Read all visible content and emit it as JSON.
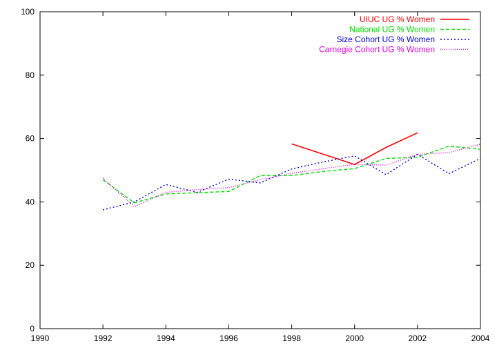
{
  "chart_data": {
    "type": "line",
    "title": "",
    "xlabel": "",
    "ylabel": "",
    "xlim": [
      1990,
      2004
    ],
    "ylim": [
      0,
      100
    ],
    "x_ticks": [
      1990,
      1992,
      1994,
      1996,
      1998,
      2000,
      2002,
      2004
    ],
    "y_ticks": [
      0,
      20,
      40,
      60,
      80,
      100
    ],
    "grid": false,
    "legend_position": "top-right",
    "series": [
      {
        "name": "UIUC UG % Women",
        "color": "#ff0000",
        "dash": "solid",
        "points": [
          [
            1998,
            58.3
          ],
          [
            2000,
            51.8
          ],
          [
            2001,
            57.2
          ],
          [
            2002,
            61.8
          ]
        ]
      },
      {
        "name": "National UG % Women",
        "color": "#00dd00",
        "dash": "dashed",
        "points": [
          [
            1992,
            47.0
          ],
          [
            1993,
            39.7
          ],
          [
            1994,
            42.5
          ],
          [
            1995,
            42.9
          ],
          [
            1996,
            43.3
          ],
          [
            1997,
            48.3
          ],
          [
            1998,
            48.3
          ],
          [
            1999,
            49.6
          ],
          [
            2000,
            50.5
          ],
          [
            2001,
            53.7
          ],
          [
            2002,
            54.1
          ],
          [
            2003,
            57.6
          ],
          [
            2004,
            56.6
          ]
        ]
      },
      {
        "name": "Size Cohort UG % Women",
        "color": "#0000cc",
        "dash": "dotted",
        "points": [
          [
            1992,
            37.5
          ],
          [
            1993,
            40.0
          ],
          [
            1994,
            45.5
          ],
          [
            1995,
            43.0
          ],
          [
            1996,
            47.2
          ],
          [
            1997,
            46.0
          ],
          [
            1998,
            50.4
          ],
          [
            1999,
            52.6
          ],
          [
            2000,
            54.5
          ],
          [
            2001,
            48.6
          ],
          [
            2002,
            55.0
          ],
          [
            2003,
            48.9
          ],
          [
            2004,
            53.7
          ]
        ]
      },
      {
        "name": "Carnegie Cohort UG % Women",
        "color": "#dd00dd",
        "dash": "fine-dotted",
        "points": [
          [
            1992,
            47.5
          ],
          [
            1993,
            38.5
          ],
          [
            1994,
            43.0
          ],
          [
            1995,
            43.9
          ],
          [
            1996,
            44.5
          ],
          [
            1997,
            47.0
          ],
          [
            1998,
            49.0
          ],
          [
            1999,
            50.5
          ],
          [
            2000,
            51.8
          ],
          [
            2001,
            51.6
          ],
          [
            2002,
            55.0
          ],
          [
            2003,
            55.6
          ],
          [
            2004,
            58.2
          ]
        ]
      }
    ]
  }
}
